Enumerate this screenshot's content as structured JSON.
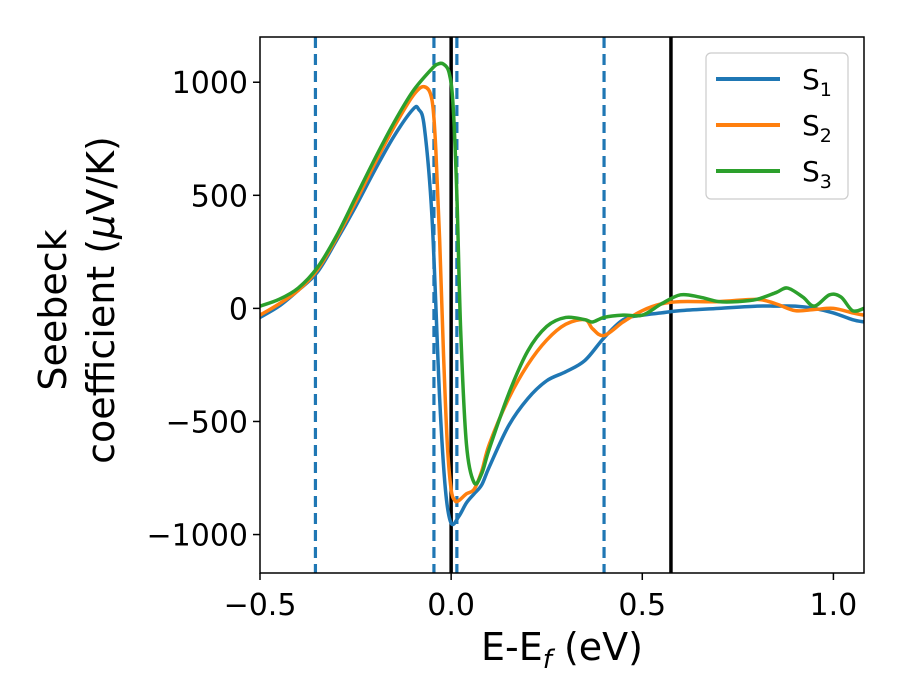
{
  "chart_data": {
    "type": "line",
    "xlabel": {
      "main": "E-E",
      "sub": "f",
      "unit": " (eV)"
    },
    "ylabel": {
      "line1": "Seebeck",
      "line2_prefix": "coefficient  (",
      "mu": "μ",
      "line2_suffix": "V/K)"
    },
    "xlim": [
      -0.5,
      1.08
    ],
    "ylim": [
      -1170,
      1200
    ],
    "xticks": [
      -0.5,
      0.0,
      0.5,
      1.0
    ],
    "xtick_labels": [
      "−0.5",
      "0.0",
      "0.5",
      "1.0"
    ],
    "yticks": [
      -1000,
      -500,
      0,
      500,
      1000
    ],
    "ytick_labels": [
      "−1000",
      "−500",
      "0",
      "500",
      "1000"
    ],
    "grid": false,
    "legend_position": "top-right",
    "vertical_lines": [
      {
        "x": -0.355,
        "style": "dashed",
        "color": "#1f77b4"
      },
      {
        "x": -0.045,
        "style": "dashed",
        "color": "#1f77b4"
      },
      {
        "x": 0.015,
        "style": "dashed",
        "color": "#1f77b4"
      },
      {
        "x": 0.4,
        "style": "dashed",
        "color": "#1f77b4"
      },
      {
        "x": 0.0,
        "style": "solid",
        "color": "#000000"
      },
      {
        "x": 0.575,
        "style": "solid",
        "color": "#000000"
      }
    ],
    "series": [
      {
        "name": "S",
        "sub": "1",
        "color": "#1f77b4",
        "x": [
          -0.5,
          -0.45,
          -0.4,
          -0.35,
          -0.3,
          -0.25,
          -0.2,
          -0.15,
          -0.1,
          -0.085,
          -0.07,
          -0.05,
          -0.03,
          -0.015,
          0.0,
          0.02,
          0.04,
          0.06,
          0.08,
          0.1,
          0.15,
          0.2,
          0.25,
          0.3,
          0.35,
          0.4,
          0.45,
          0.5,
          0.55,
          0.6,
          0.7,
          0.8,
          0.85,
          0.9,
          0.95,
          1.0,
          1.05,
          1.08
        ],
        "y": [
          -40,
          10,
          80,
          160,
          300,
          450,
          610,
          760,
          880,
          880,
          800,
          400,
          -400,
          -800,
          -950,
          -920,
          -860,
          -820,
          -780,
          -700,
          -520,
          -400,
          -320,
          -280,
          -230,
          -130,
          -50,
          -30,
          -20,
          -10,
          0,
          10,
          10,
          10,
          0,
          -20,
          -50,
          -60
        ]
      },
      {
        "name": "S",
        "sub": "2",
        "color": "#ff7f0e",
        "x": [
          -0.5,
          -0.45,
          -0.4,
          -0.35,
          -0.3,
          -0.25,
          -0.2,
          -0.15,
          -0.1,
          -0.07,
          -0.05,
          -0.04,
          -0.03,
          -0.02,
          -0.01,
          0.0,
          0.01,
          0.02,
          0.04,
          0.06,
          0.08,
          0.1,
          0.15,
          0.2,
          0.25,
          0.3,
          0.35,
          0.37,
          0.4,
          0.45,
          0.5,
          0.55,
          0.6,
          0.7,
          0.8,
          0.85,
          0.9,
          0.95,
          1.0,
          1.05,
          1.08
        ],
        "y": [
          -30,
          20,
          80,
          170,
          310,
          470,
          640,
          800,
          940,
          980,
          920,
          700,
          300,
          -200,
          -600,
          -800,
          -850,
          -850,
          -820,
          -800,
          -720,
          -600,
          -400,
          -250,
          -140,
          -70,
          -50,
          -90,
          -120,
          -60,
          -10,
          20,
          30,
          30,
          40,
          20,
          -10,
          -5,
          0,
          -20,
          -30
        ]
      },
      {
        "name": "S",
        "sub": "3",
        "color": "#2ca02c",
        "x": [
          -0.5,
          -0.45,
          -0.4,
          -0.35,
          -0.3,
          -0.25,
          -0.2,
          -0.15,
          -0.1,
          -0.05,
          -0.035,
          -0.02,
          -0.005,
          0.005,
          0.015,
          0.025,
          0.04,
          0.06,
          0.08,
          0.1,
          0.15,
          0.2,
          0.25,
          0.3,
          0.35,
          0.37,
          0.4,
          0.45,
          0.5,
          0.55,
          0.6,
          0.65,
          0.7,
          0.75,
          0.8,
          0.85,
          0.88,
          0.92,
          0.95,
          0.99,
          1.02,
          1.05,
          1.08
        ],
        "y": [
          10,
          40,
          90,
          180,
          320,
          490,
          660,
          820,
          960,
          1060,
          1080,
          1080,
          1040,
          900,
          500,
          -100,
          -600,
          -770,
          -730,
          -620,
          -380,
          -190,
          -80,
          -40,
          -50,
          -60,
          -40,
          -30,
          -30,
          20,
          60,
          50,
          30,
          30,
          40,
          70,
          90,
          50,
          10,
          60,
          50,
          -10,
          0
        ]
      }
    ]
  }
}
